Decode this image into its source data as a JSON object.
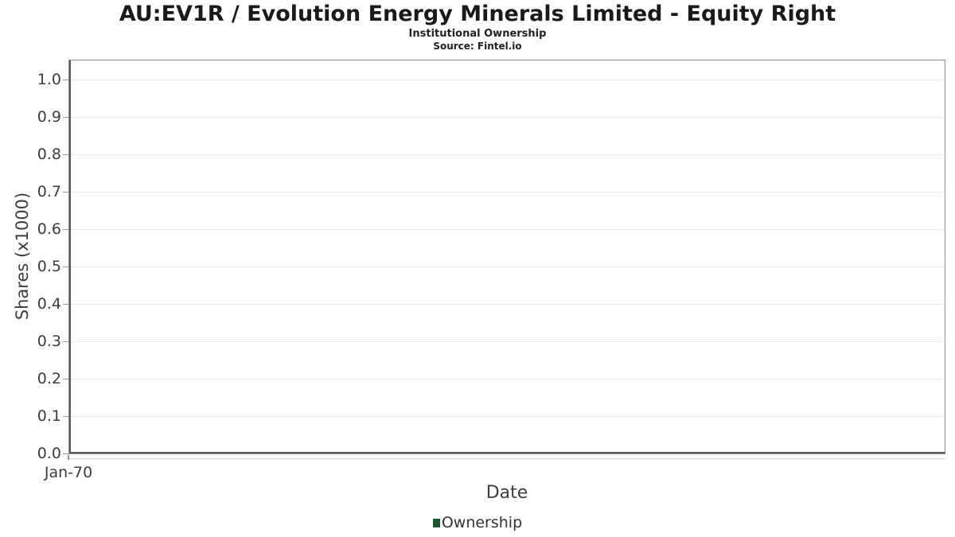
{
  "chart_data": {
    "type": "line",
    "title": "AU:EV1R / Evolution Energy Minerals Limited - Equity Right",
    "subtitle": "Institutional Ownership",
    "source": "Source: Fintel.io",
    "xlabel": "Date",
    "ylabel": "Shares (x1000)",
    "ylim": [
      0.0,
      1.0
    ],
    "y_ticks": [
      "0.0",
      "0.1",
      "0.2",
      "0.3",
      "0.4",
      "0.5",
      "0.6",
      "0.7",
      "0.8",
      "0.9",
      "1.0"
    ],
    "x_ticks": [
      "Jan-70"
    ],
    "grid": true,
    "legend_position": "bottom",
    "legend": [
      {
        "label": "Ownership",
        "color": "#1f5430"
      }
    ],
    "series": [
      {
        "name": "Ownership",
        "x": [],
        "y": []
      }
    ]
  },
  "colors": {
    "grid": "#e8e8e8",
    "border": "#999999",
    "axis": "#5a5a5a",
    "tick_text": "#3d3d3d",
    "title_text": "#1a1a1a",
    "legend_marker": "#1f5430"
  }
}
